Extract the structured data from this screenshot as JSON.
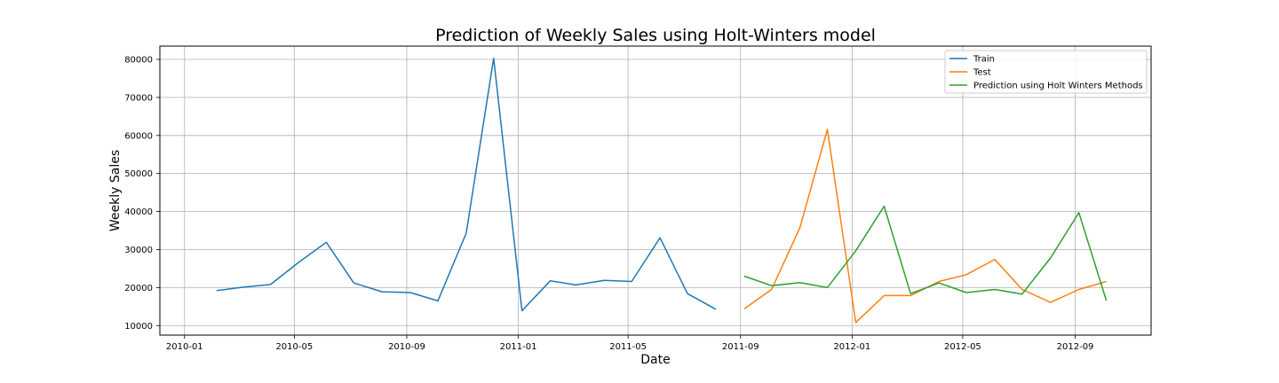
{
  "chart_data": {
    "type": "line",
    "title": "Prediction of Weekly Sales using Holt-Winters model",
    "xlabel": "Date",
    "ylabel": "Weekly Sales",
    "xlim": [
      "2009-12-05",
      "2012-11-23"
    ],
    "ylim": [
      7500,
      83500
    ],
    "grid": true,
    "legend_position": "top-right",
    "x_ticks": [
      "2010-01",
      "2010-05",
      "2010-09",
      "2011-01",
      "2011-05",
      "2011-09",
      "2012-01",
      "2012-05",
      "2012-09"
    ],
    "y_ticks": [
      10000,
      20000,
      30000,
      40000,
      50000,
      60000,
      70000,
      80000
    ],
    "series": [
      {
        "name": "Train",
        "color": "#1f77b4",
        "x": [
          "2010-02-05",
          "2010-03-05",
          "2010-04-05",
          "2010-05-05",
          "2010-06-05",
          "2010-07-05",
          "2010-08-05",
          "2010-09-05",
          "2010-10-05",
          "2010-11-05",
          "2010-12-05",
          "2011-01-05",
          "2011-02-05",
          "2011-03-05",
          "2011-04-05",
          "2011-05-05",
          "2011-06-05",
          "2011-07-05",
          "2011-08-05"
        ],
        "y": [
          19200,
          20100,
          20800,
          26500,
          31900,
          21200,
          18900,
          18700,
          16500,
          34300,
          80300,
          13900,
          21800,
          20700,
          21900,
          21600,
          33100,
          18400,
          14300
        ]
      },
      {
        "name": "Test",
        "color": "#ff7f0e",
        "x": [
          "2011-09-05",
          "2011-10-05",
          "2011-11-05",
          "2011-12-05",
          "2012-01-05",
          "2012-02-05",
          "2012-03-05",
          "2012-04-05",
          "2012-05-05",
          "2012-06-05",
          "2012-07-05",
          "2012-08-05",
          "2012-09-05",
          "2012-10-05"
        ],
        "y": [
          14400,
          19500,
          35800,
          61600,
          10800,
          17900,
          17900,
          21600,
          23400,
          27400,
          19500,
          16100,
          19500,
          21600
        ]
      },
      {
        "name": "Prediction using Holt Winters Methods",
        "color": "#2ca02c",
        "x": [
          "2011-09-05",
          "2011-10-05",
          "2011-11-05",
          "2011-12-05",
          "2012-01-05",
          "2012-02-05",
          "2012-03-05",
          "2012-04-05",
          "2012-05-05",
          "2012-06-05",
          "2012-07-05",
          "2012-08-05",
          "2012-09-05",
          "2012-10-05"
        ],
        "y": [
          23000,
          20500,
          21300,
          20000,
          29700,
          41400,
          18400,
          21200,
          18700,
          19500,
          18300,
          27800,
          39700,
          16600
        ]
      }
    ]
  }
}
